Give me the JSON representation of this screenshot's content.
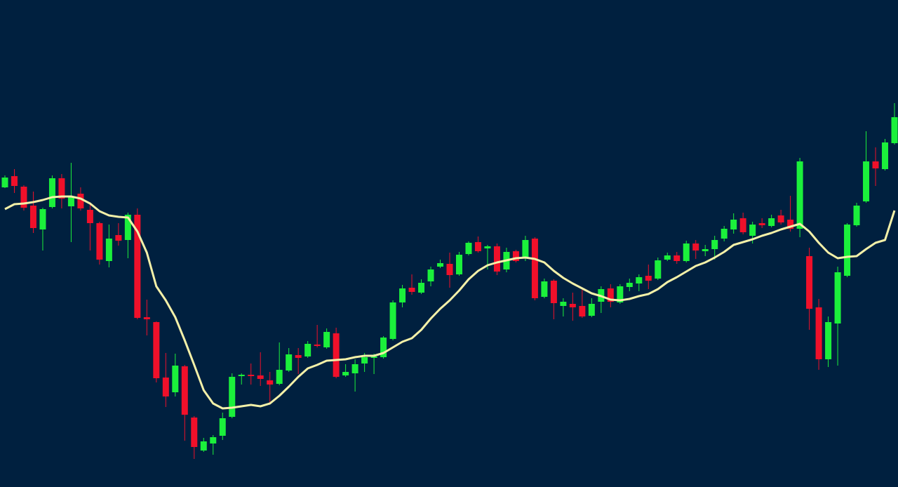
{
  "chart_data": {
    "type": "candlestick",
    "background": "#00203f",
    "up_color": "#1bf03b",
    "down_color": "#f0102a",
    "ylim": [
      0,
      694
    ],
    "open": [
      427,
      443,
      428,
      401,
      367,
      399,
      440,
      400,
      418,
      395,
      376,
      322,
      359,
      352,
      388,
      242,
      235,
      156,
      135,
      172,
      99,
      52,
      62,
      73,
      100,
      158,
      160,
      159,
      152,
      147,
      166,
      188,
      186,
      203,
      199,
      219,
      159,
      162,
      176,
      184,
      185,
      211,
      263,
      284,
      277,
      293,
      314,
      318,
      303,
      332,
      349,
      340,
      343,
      310,
      336,
      326,
      354,
      271,
      294,
      258,
      261,
      258,
      244,
      264,
      283,
      263,
      285,
      290,
      301,
      297,
      324,
      330,
      322,
      347,
      336,
      339,
      354,
      367,
      383,
      358,
      376,
      372,
      387,
      381,
      368,
      329,
      256,
      182,
      233,
      301,
      373,
      407,
      464,
      453,
      490
    ],
    "high": [
      444,
      453,
      430,
      421,
      398,
      444,
      446,
      462,
      427,
      404,
      378,
      374,
      376,
      391,
      397,
      267,
      236,
      191,
      190,
      174,
      101,
      70,
      74,
      106,
      162,
      162,
      176,
      192,
      164,
      206,
      198,
      198,
      208,
      231,
      226,
      227,
      175,
      182,
      191,
      190,
      215,
      266,
      288,
      303,
      296,
      314,
      324,
      334,
      335,
      350,
      357,
      345,
      347,
      341,
      338,
      358,
      356,
      297,
      296,
      269,
      277,
      281,
      269,
      286,
      289,
      289,
      297,
      303,
      317,
      327,
      334,
      335,
      351,
      352,
      345,
      358,
      372,
      390,
      391,
      378,
      383,
      388,
      395,
      415,
      469,
      341,
      268,
      243,
      314,
      376,
      405,
      507,
      484,
      496,
      547
    ],
    "low": [
      426,
      419,
      394,
      362,
      337,
      397,
      397,
      349,
      394,
      337,
      317,
      313,
      344,
      326,
      239,
      216,
      149,
      114,
      129,
      66,
      40,
      50,
      46,
      67,
      98,
      146,
      146,
      144,
      119,
      145,
      164,
      161,
      184,
      199,
      197,
      155,
      157,
      136,
      164,
      161,
      183,
      209,
      256,
      274,
      275,
      286,
      312,
      284,
      301,
      330,
      334,
      310,
      302,
      306,
      320,
      322,
      266,
      269,
      239,
      243,
      237,
      241,
      242,
      248,
      256,
      261,
      279,
      279,
      282,
      295,
      322,
      318,
      320,
      325,
      329,
      324,
      350,
      361,
      360,
      347,
      369,
      370,
      374,
      364,
      356,
      224,
      167,
      171,
      173,
      299,
      371,
      405,
      429,
      451,
      488
    ],
    "close": [
      441,
      429,
      398,
      369,
      396,
      440,
      411,
      413,
      397,
      376,
      324,
      354,
      351,
      388,
      241,
      239,
      155,
      129,
      173,
      103,
      57,
      65,
      71,
      98,
      157,
      160,
      158,
      154,
      146,
      167,
      189,
      184,
      204,
      201,
      221,
      157,
      164,
      175,
      185,
      186,
      213,
      263,
      283,
      278,
      291,
      310,
      319,
      302,
      331,
      348,
      336,
      343,
      307,
      335,
      322,
      352,
      269,
      293,
      262,
      264,
      256,
      243,
      261,
      282,
      264,
      286,
      291,
      299,
      294,
      323,
      330,
      322,
      347,
      337,
      339,
      352,
      368,
      381,
      363,
      374,
      373,
      383,
      377,
      368,
      464,
      254,
      182,
      235,
      306,
      374,
      401,
      464,
      454,
      491,
      527
    ],
    "moving_average": {
      "color": "#f3f0a8",
      "values": [
        396,
        403,
        404,
        406,
        409,
        413,
        414,
        414,
        411,
        404,
        393,
        387,
        385,
        384,
        364,
        334,
        286,
        266,
        242,
        209,
        174,
        138,
        119,
        112,
        113,
        115,
        117,
        115,
        119,
        130,
        143,
        157,
        169,
        174,
        180,
        181,
        182,
        185,
        187,
        187,
        191,
        199,
        207,
        212,
        224,
        240,
        254,
        266,
        280,
        296,
        308,
        316,
        320,
        323,
        326,
        327,
        325,
        320,
        308,
        298,
        290,
        283,
        276,
        272,
        267,
        266,
        268,
        272,
        275,
        282,
        292,
        299,
        307,
        315,
        320,
        327,
        335,
        345,
        349,
        353,
        358,
        362,
        367,
        371,
        375,
        364,
        348,
        334,
        326,
        328,
        329,
        339,
        348,
        352,
        394
      ]
    }
  }
}
